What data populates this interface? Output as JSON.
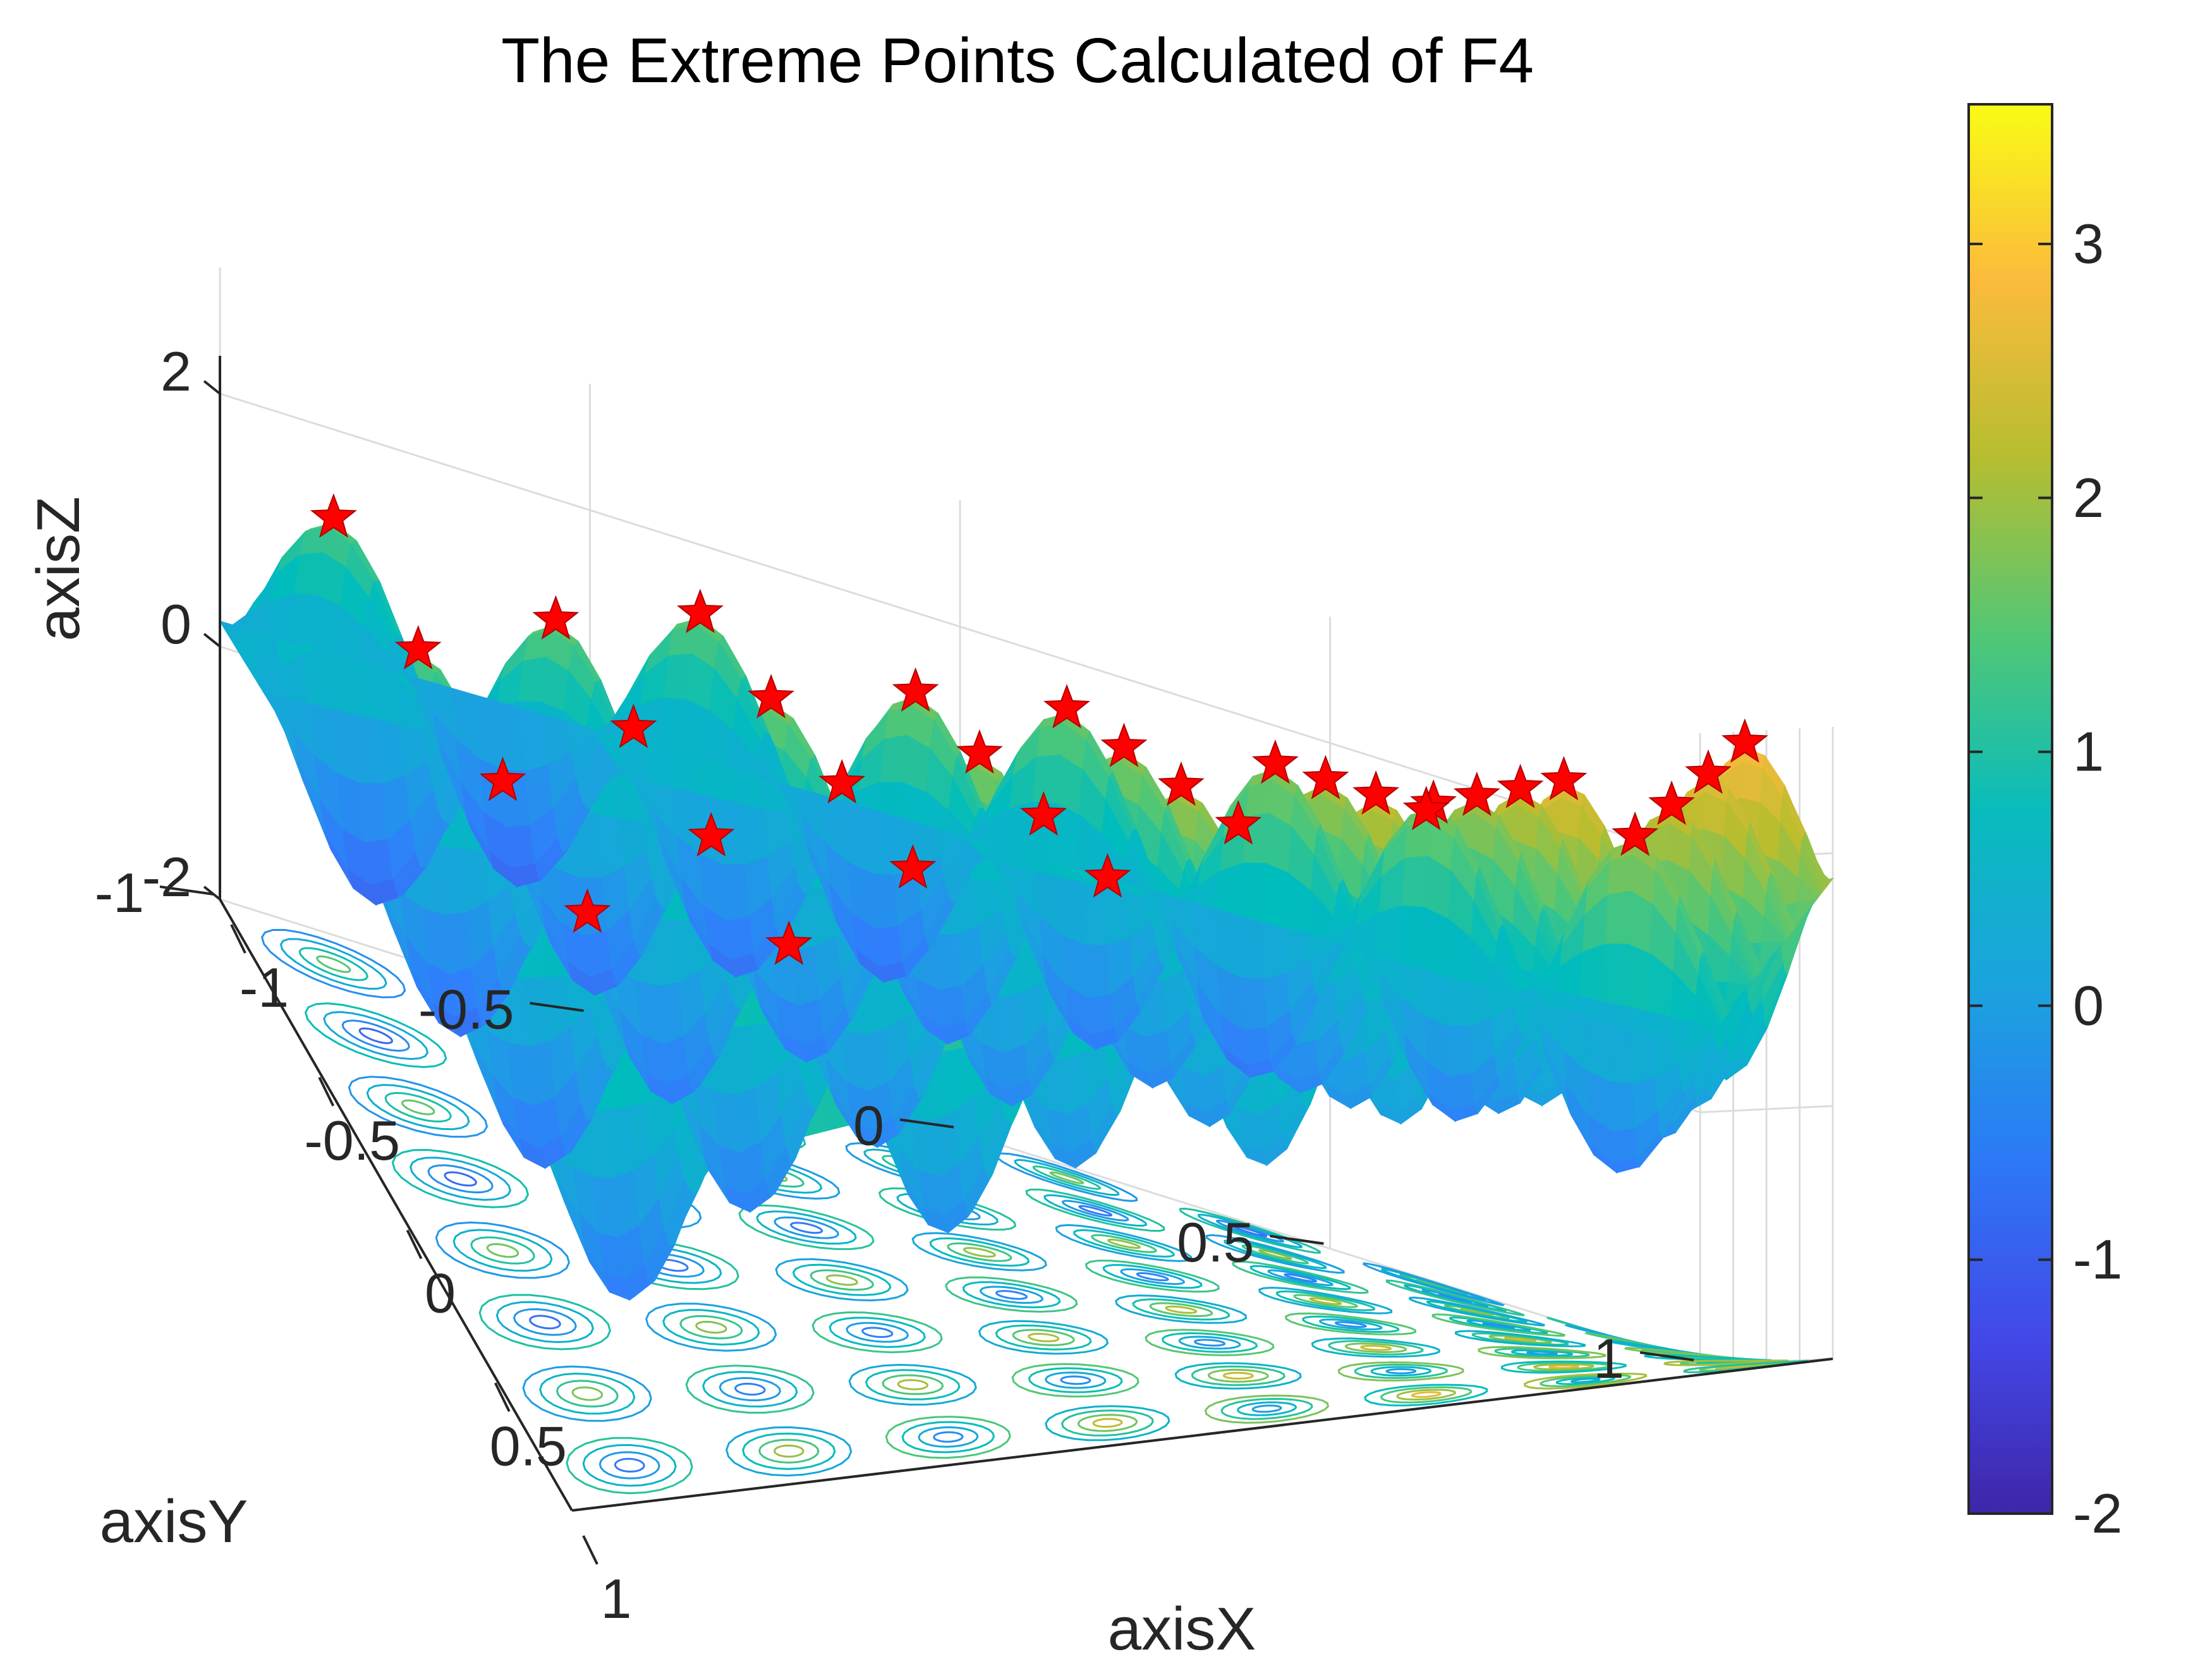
{
  "chart_data": {
    "type": "surface",
    "title": "The Extreme Points Calculated of F4",
    "xlabel": "axisX",
    "ylabel": "axisY",
    "zlabel": "axisZ",
    "xlim": [
      -1,
      1
    ],
    "ylim": [
      -1,
      1
    ],
    "zlim": [
      -2,
      3
    ],
    "x_ticks": [
      "-1",
      "-0.5",
      "0",
      "0.5",
      "1"
    ],
    "y_ticks": [
      "-1",
      "-0.5",
      "0",
      "0.5",
      "1"
    ],
    "z_ticks": [
      "-2",
      "0",
      "2"
    ],
    "colorbar": {
      "range": [
        -2,
        3.55
      ],
      "ticks": [
        "-2",
        "-1",
        "0",
        "1",
        "2",
        "3"
      ],
      "colormap": "parula"
    },
    "contour_plane": "z = -2 (floor)",
    "peak_x": [
      -0.875,
      -0.625,
      -0.375,
      -0.125,
      0.125,
      0.375,
      0.625,
      0.875
    ],
    "peak_y": [
      -0.875,
      -0.625,
      -0.375,
      -0.125,
      0.125,
      0.375,
      0.625,
      0.875
    ],
    "extreme_points": {
      "marker": "red pentagram",
      "count": 40,
      "z_range": [
        1.5,
        3.5
      ]
    },
    "grid": "on",
    "colors": {
      "marker": "#ff0000",
      "grid": "#dcdcdc",
      "axis": "#262626"
    }
  }
}
